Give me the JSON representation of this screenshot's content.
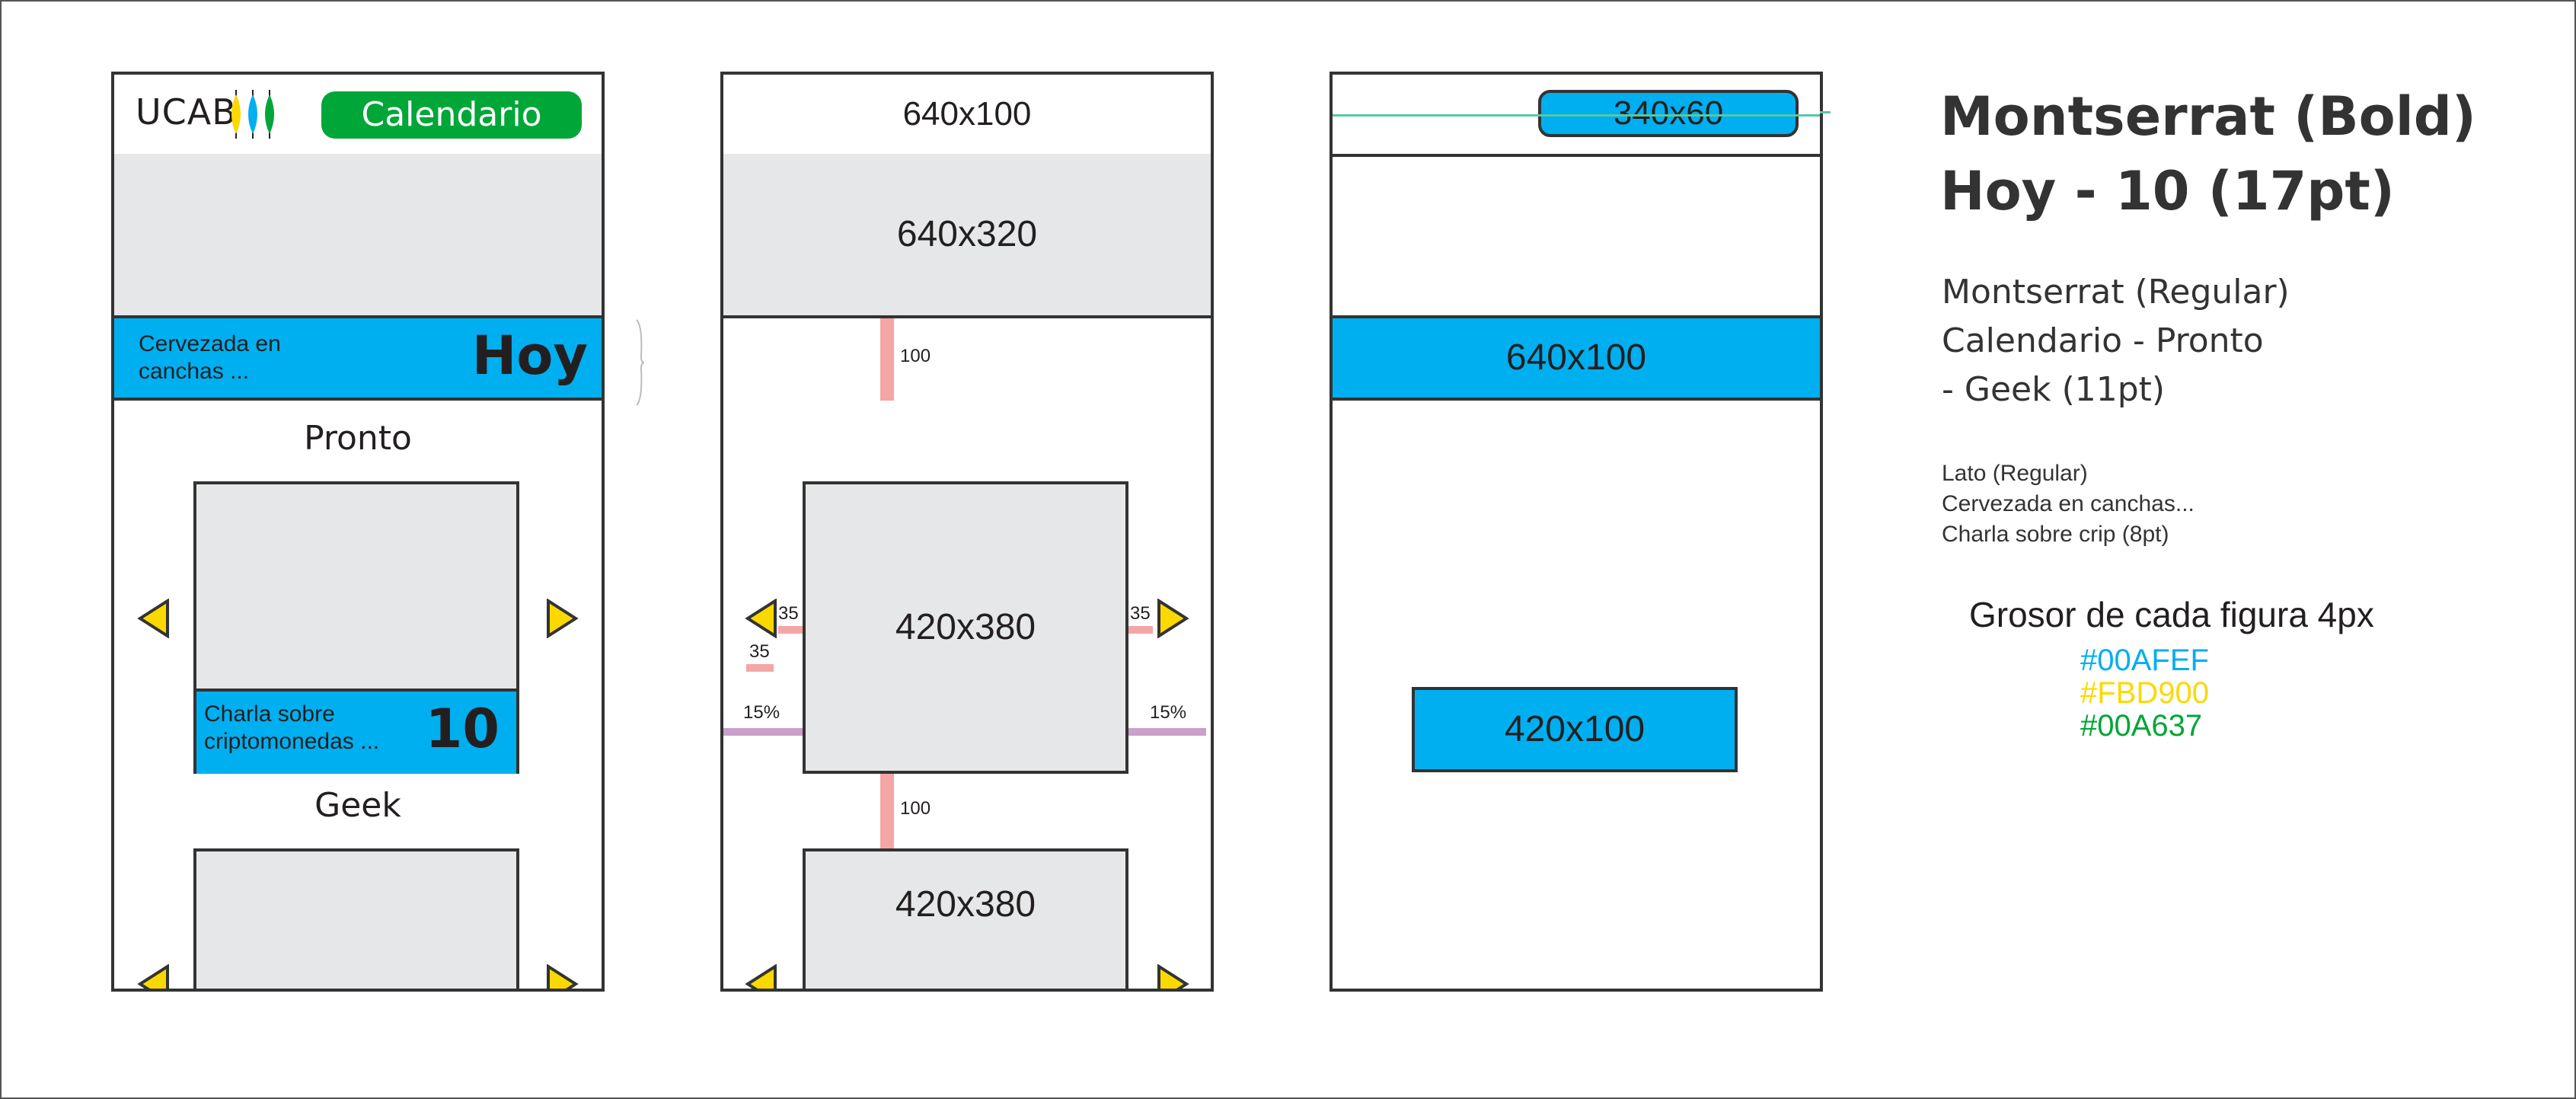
{
  "colors": {
    "blue": "#00AFEF",
    "yellow": "#FBD900",
    "green": "#00A637",
    "gray": "#E6E7E8",
    "stroke": "#333333",
    "pink": "#F4A6A6",
    "purple": "#C9A0C9",
    "teal": "#56C8A5"
  },
  "mock": {
    "logo_text": "UCAB",
    "calendar_button": "Calendario",
    "banner_subtitle": "Cervezada en\ncanchas ...",
    "banner_title": "Hoy",
    "section1": "Pronto",
    "card_subtitle": "Charla sobre\ncriptomonedas ...",
    "card_number": "10",
    "section2": "Geek"
  },
  "dims": {
    "header": "640x100",
    "hero": "640x320",
    "gap_top": "100",
    "card": "420x380",
    "arrow_left": "35",
    "arrow_left_below": "35",
    "arrow_right": "35",
    "margin_left": "15%",
    "margin_right": "15%",
    "gap_bottom": "100",
    "card2": "420x380",
    "button": "340x60",
    "banner": "640x100",
    "card_label": "420x100"
  },
  "typography": {
    "bold_title": "Montserrat (Bold)",
    "bold_sub": "Hoy - 10  (17pt)",
    "regular_lines": [
      "Montserrat (Regular)",
      "Calendario - Pronto",
      "- Geek (11pt)"
    ],
    "lato_lines": [
      "Lato (Regular)",
      "Cervezada en canchas...",
      "Charla sobre crip (8pt)"
    ],
    "stroke_note": "Grosor de cada figura 4px",
    "hex": [
      "#00AFEF",
      "#FBD900",
      "#00A637"
    ]
  }
}
